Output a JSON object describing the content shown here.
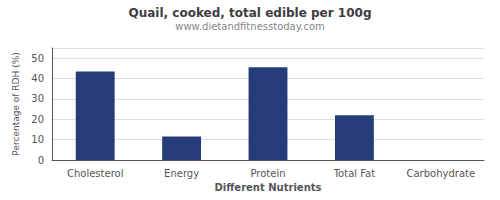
{
  "chart_data": {
    "type": "bar",
    "title": "Quail, cooked, total edible per 100g",
    "subtitle": "www.dietandfitnesstoday.com",
    "xlabel": "Different Nutrients",
    "ylabel": "Percentage of RDH (%)",
    "categories": [
      "Cholesterol",
      "Energy",
      "Protein",
      "Total Fat",
      "Carbohydrate"
    ],
    "values": [
      43.5,
      11.5,
      45.5,
      22.0,
      0.0
    ],
    "color": "#263d7a",
    "ylim": [
      0,
      55
    ],
    "yticks": [
      0,
      10,
      20,
      30,
      40,
      50
    ],
    "grid": true
  }
}
